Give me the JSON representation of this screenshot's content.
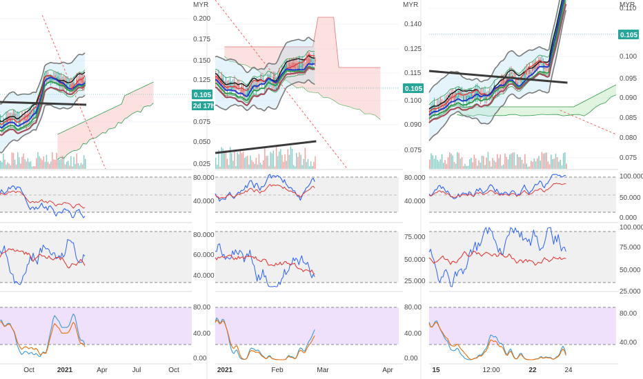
{
  "currency": "MYR",
  "colors": {
    "teal": "#26a69a",
    "ema_black": "#111111",
    "ema_red": "#e53935",
    "ema_blue": "#1e3acb",
    "ema_green": "#2e9b4a",
    "ema_brown": "#a64d5c",
    "ema_gray": "#3a3a3a",
    "cloud_red": "#f7c9c5",
    "cloud_green": "#c7ebc7",
    "rsi_band": "#e6e6e6",
    "stoch_band": "#e8d4fb",
    "k_line": "#2962ff",
    "d_line": "#e53935",
    "stoch_k": "#3a9bd8",
    "stoch_d": "#ef6c00"
  },
  "chart_data": [
    {
      "type": "line",
      "panel": "left",
      "title": "",
      "price_axis": {
        "ticks": [
          "0.200",
          "0.175",
          "0.150",
          "0.125",
          "0.100",
          "0.075",
          "0.050",
          "0.025"
        ],
        "ylim": [
          0.015,
          0.21
        ]
      },
      "last_price": "0.105",
      "countdown": "2d 17h",
      "x_ticks": [
        "Oct",
        "2021",
        "Apr",
        "Jul",
        "Oct"
      ],
      "x_bold": [
        false,
        true,
        false,
        false,
        false
      ],
      "indicator_axes": [
        {
          "ticks": [
            "80.000",
            "40.000"
          ],
          "ylim": [
            0,
            100
          ]
        },
        {
          "ticks": [
            "80.000",
            "60.000",
            "40.000"
          ],
          "ylim": [
            20,
            100
          ]
        },
        {
          "ticks": [
            "80.00",
            "40.00",
            "0.00"
          ],
          "ylim": [
            -10,
            110
          ]
        }
      ]
    },
    {
      "type": "line",
      "panel": "middle",
      "title": "",
      "price_axis": {
        "ticks": [
          "0.140",
          "0.125",
          "0.115",
          "0.105",
          "0.100",
          "0.090",
          "0.075"
        ],
        "ylim": [
          0.07,
          0.14
        ]
      },
      "last_price": "0.105",
      "x_ticks": [
        "2021",
        "Feb",
        "Mar",
        "Apr"
      ],
      "x_bold": [
        true,
        false,
        false,
        false
      ],
      "indicator_axes": [
        {
          "ticks": [
            "80.000",
            "40.000"
          ],
          "ylim": [
            0,
            100
          ]
        },
        {
          "ticks": [
            "75.000",
            "50.000",
            "25.000"
          ],
          "ylim": [
            10,
            90
          ]
        },
        {
          "ticks": [
            "80.00",
            "40.00",
            "0.00"
          ],
          "ylim": [
            -10,
            110
          ]
        }
      ]
    },
    {
      "type": "line",
      "panel": "right",
      "title": "",
      "price_axis": {
        "ticks": [
          "0.110",
          "0.105",
          "0.100",
          "0.095",
          "0.090",
          "0.085",
          "0.080",
          "0.075"
        ],
        "ylim": [
          0.072,
          0.112
        ]
      },
      "last_price": "0.105",
      "x_ticks": [
        "15",
        "12:00",
        "22",
        "24"
      ],
      "x_bold": [
        true,
        false,
        true,
        false
      ],
      "indicator_axes": [
        {
          "ticks": [
            "100.000",
            "50.000",
            "0.000"
          ],
          "ylim": [
            -10,
            115
          ]
        },
        {
          "ticks": [
            "100.000",
            "75.000",
            "50.000",
            "25.000"
          ],
          "ylim": [
            20,
            105
          ]
        },
        {
          "ticks": [
            "80.00",
            "40.00"
          ],
          "ylim": [
            10,
            110
          ]
        }
      ]
    }
  ]
}
